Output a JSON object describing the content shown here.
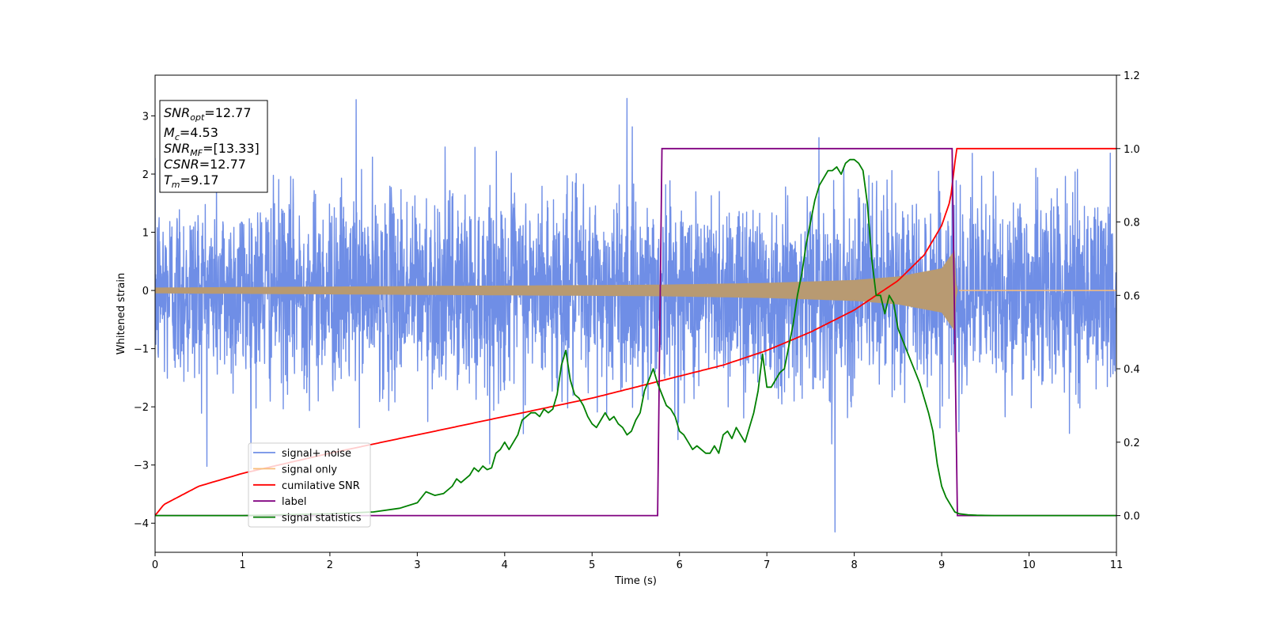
{
  "chart_data": {
    "type": "line",
    "xlabel": "Time (s)",
    "ylabel": "Whitened strain",
    "xlim": [
      0,
      11
    ],
    "ylim": [
      -4.5,
      3.7
    ],
    "y2lim": [
      -0.1,
      1.2
    ],
    "x_ticks": [
      "0",
      "1",
      "2",
      "3",
      "4",
      "5",
      "6",
      "7",
      "8",
      "9",
      "10",
      "11"
    ],
    "y_ticks": [
      "−4",
      "−3",
      "−2",
      "−1",
      "0",
      "1",
      "2",
      "3"
    ],
    "y2_ticks": [
      "0.0",
      "0.2",
      "0.4",
      "0.6",
      "0.8",
      "1.0",
      "1.2"
    ],
    "legend_position": "lower-left",
    "colors": {
      "signal_noise": "#6f8ee6",
      "signal_only": "#f8bd7a",
      "signal_only_mixed": "#b89a72",
      "cumulative_snr": "#ff0000",
      "label": "#800080",
      "signal_statistics": "#008000"
    },
    "info_box": {
      "snr_opt": {
        "name": "SNR",
        "sub": "opt",
        "value": "=12.77"
      },
      "mc": {
        "name": "M",
        "sub": "c",
        "value": "=4.53"
      },
      "snr_mf": {
        "name": "SNR",
        "sub": "MF",
        "value": "=[13.33]"
      },
      "csnr": {
        "name": "CSNR",
        "value": "=12.77"
      },
      "tm": {
        "name": "T",
        "sub": "m",
        "value": "=9.17"
      }
    },
    "series": [
      {
        "name": "signal+ noise",
        "axis": "left",
        "description_values": {
          "noise_sigma": 1.0,
          "extremes": [
            [
              5.4,
              3.3
            ],
            [
              2.3,
              3.28
            ],
            [
              7.78,
              -4.15
            ]
          ]
        }
      },
      {
        "name": "signal only",
        "axis": "left",
        "envelope": {
          "x": [
            0,
            5.8,
            7.0,
            8.0,
            8.5,
            9.0,
            9.15,
            9.17,
            11
          ],
          "y": [
            0.05,
            0.1,
            0.13,
            0.18,
            0.24,
            0.38,
            0.7,
            0.0,
            0.0
          ]
        }
      },
      {
        "name": "cumilative SNR",
        "axis": "right",
        "x": [
          0,
          0.1,
          0.5,
          1,
          2,
          3,
          4,
          5,
          6,
          6.5,
          7,
          7.5,
          8,
          8.5,
          8.8,
          9.0,
          9.1,
          9.17,
          11
        ],
        "y": [
          0.0,
          0.03,
          0.08,
          0.115,
          0.17,
          0.22,
          0.27,
          0.32,
          0.38,
          0.41,
          0.45,
          0.5,
          0.56,
          0.64,
          0.71,
          0.79,
          0.86,
          1.0,
          1.0
        ]
      },
      {
        "name": "label",
        "axis": "right",
        "x": [
          0,
          5.75,
          5.8,
          9.12,
          9.18,
          11
        ],
        "y": [
          0,
          0,
          1,
          1,
          0,
          0
        ]
      },
      {
        "name": "signal statistics",
        "axis": "right",
        "x": [
          0,
          1,
          2,
          2.5,
          2.8,
          3.0,
          3.1,
          3.2,
          3.3,
          3.4,
          3.45,
          3.5,
          3.6,
          3.65,
          3.7,
          3.75,
          3.8,
          3.85,
          3.9,
          3.95,
          4.0,
          4.05,
          4.1,
          4.15,
          4.2,
          4.3,
          4.35,
          4.4,
          4.45,
          4.5,
          4.55,
          4.6,
          4.65,
          4.7,
          4.75,
          4.8,
          4.85,
          4.9,
          4.95,
          5.0,
          5.05,
          5.1,
          5.15,
          5.2,
          5.25,
          5.3,
          5.35,
          5.4,
          5.45,
          5.5,
          5.55,
          5.6,
          5.65,
          5.7,
          5.75,
          5.8,
          5.85,
          5.9,
          5.95,
          6.0,
          6.05,
          6.1,
          6.15,
          6.2,
          6.3,
          6.35,
          6.4,
          6.45,
          6.5,
          6.55,
          6.6,
          6.65,
          6.7,
          6.75,
          6.8,
          6.85,
          6.9,
          6.95,
          7.0,
          7.05,
          7.1,
          7.15,
          7.2,
          7.25,
          7.3,
          7.35,
          7.4,
          7.45,
          7.5,
          7.55,
          7.6,
          7.65,
          7.7,
          7.75,
          7.8,
          7.85,
          7.9,
          7.95,
          8.0,
          8.05,
          8.1,
          8.15,
          8.2,
          8.25,
          8.3,
          8.35,
          8.4,
          8.45,
          8.5,
          8.55,
          8.6,
          8.65,
          8.7,
          8.75,
          8.8,
          8.85,
          8.9,
          8.95,
          9.0,
          9.05,
          9.1,
          9.15,
          9.2,
          9.3,
          9.4,
          9.6,
          10,
          11
        ],
        "y": [
          0.0,
          0.0,
          0.005,
          0.01,
          0.02,
          0.035,
          0.065,
          0.055,
          0.06,
          0.08,
          0.1,
          0.09,
          0.11,
          0.13,
          0.12,
          0.135,
          0.125,
          0.13,
          0.17,
          0.18,
          0.2,
          0.18,
          0.2,
          0.22,
          0.26,
          0.28,
          0.28,
          0.27,
          0.29,
          0.28,
          0.29,
          0.33,
          0.41,
          0.45,
          0.37,
          0.33,
          0.32,
          0.3,
          0.27,
          0.25,
          0.24,
          0.26,
          0.28,
          0.26,
          0.27,
          0.25,
          0.24,
          0.22,
          0.23,
          0.26,
          0.28,
          0.34,
          0.37,
          0.4,
          0.36,
          0.33,
          0.3,
          0.29,
          0.27,
          0.23,
          0.22,
          0.2,
          0.18,
          0.19,
          0.17,
          0.17,
          0.19,
          0.17,
          0.22,
          0.23,
          0.21,
          0.24,
          0.22,
          0.2,
          0.24,
          0.28,
          0.34,
          0.44,
          0.35,
          0.35,
          0.37,
          0.39,
          0.4,
          0.46,
          0.52,
          0.6,
          0.66,
          0.74,
          0.8,
          0.86,
          0.9,
          0.92,
          0.94,
          0.94,
          0.95,
          0.93,
          0.96,
          0.97,
          0.97,
          0.96,
          0.94,
          0.85,
          0.7,
          0.6,
          0.6,
          0.55,
          0.6,
          0.58,
          0.51,
          0.48,
          0.45,
          0.42,
          0.39,
          0.36,
          0.32,
          0.28,
          0.23,
          0.14,
          0.08,
          0.05,
          0.03,
          0.01,
          0.005,
          0.002,
          0.001,
          0.0,
          0.0,
          0.0
        ]
      }
    ]
  }
}
